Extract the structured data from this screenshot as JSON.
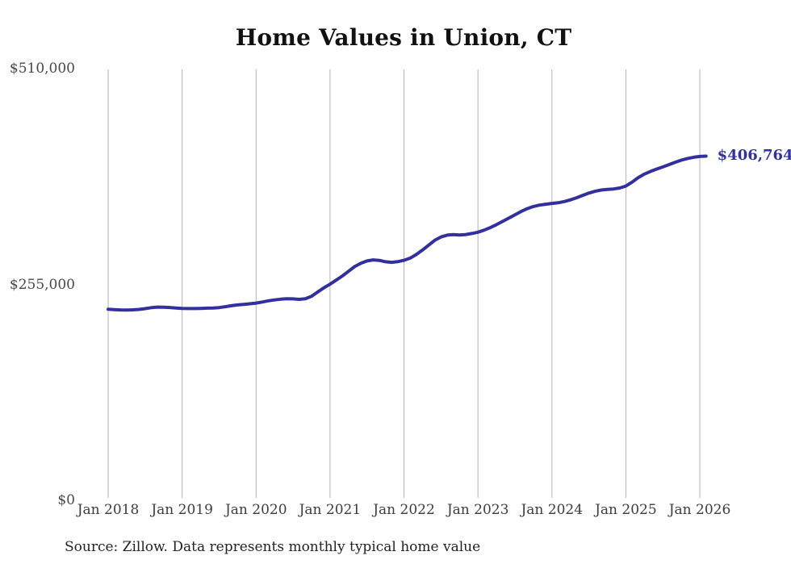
{
  "page": {
    "background_color": "#ffffff"
  },
  "chart": {
    "title": "Home Values in Union, CT",
    "source_note": "Source: Zillow. Data represents monthly typical home value",
    "end_label": "$406,764",
    "line_color": "#32309c",
    "grid_color": "#b3b3b3",
    "title_color": "#111111",
    "y_axis_labels": [
      "$510,000",
      "$255,000",
      "$0"
    ],
    "x_axis_labels": [
      "Jan 2018",
      "Jan 2019",
      "Jan 2020",
      "Jan 2021",
      "Jan 2022",
      "Jan 2023",
      "Jan 2024",
      "Jan 2025",
      "Jan 2026"
    ]
  },
  "chart_data": {
    "type": "line",
    "title": "Home Values in Union, CT",
    "xlabel": "",
    "ylabel": "",
    "ylim": [
      0,
      510000
    ],
    "y_tick_values": [
      0,
      255000,
      510000
    ],
    "y_tick_labels": [
      "$0",
      "$255,000",
      "$510,000"
    ],
    "x_tick_labels": [
      "Jan 2018",
      "Jan 2019",
      "Jan 2020",
      "Jan 2021",
      "Jan 2022",
      "Jan 2023",
      "Jan 2024",
      "Jan 2025",
      "Jan 2026"
    ],
    "grid": "vertical-only",
    "legend": "none",
    "annotation": {
      "text": "$406,764",
      "value": 406764,
      "position": "line-end"
    },
    "source": "Source: Zillow. Data represents monthly typical home value",
    "series": [
      {
        "name": "Monthly typical home value",
        "start_month": "2018-01",
        "end_month": "2026-02",
        "interval": "monthly",
        "values": [
          226200,
          225800,
          225400,
          225300,
          225500,
          226000,
          226900,
          228100,
          228700,
          228600,
          228300,
          227600,
          227200,
          227000,
          227000,
          227200,
          227500,
          227700,
          228200,
          229200,
          230400,
          231300,
          231900,
          232600,
          233500,
          234700,
          236200,
          237200,
          238100,
          238500,
          238400,
          237900,
          238500,
          241500,
          246500,
          251500,
          255800,
          260500,
          265500,
          271000,
          276500,
          280500,
          283200,
          284400,
          283800,
          282200,
          281500,
          282300,
          283900,
          286500,
          290800,
          296000,
          301800,
          307500,
          311400,
          313600,
          314200,
          313800,
          314300,
          315500,
          317000,
          319500,
          322500,
          326000,
          329800,
          333600,
          337600,
          341500,
          344800,
          347400,
          349000,
          350100,
          351000,
          351800,
          353200,
          355200,
          357700,
          360500,
          363200,
          365300,
          366800,
          367600,
          368000,
          369200,
          371500,
          376000,
          381500,
          385500,
          388800,
          391500,
          394000,
          396800,
          399500,
          402000,
          404000,
          405400,
          406400,
          406764
        ]
      }
    ]
  }
}
